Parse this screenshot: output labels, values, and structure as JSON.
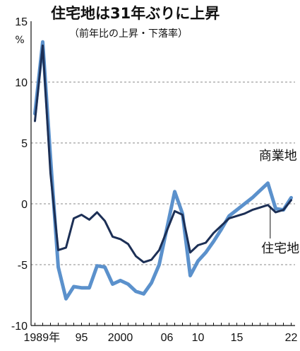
{
  "chart_data": {
    "type": "line",
    "title": "住宅地は31年ぶりに上昇",
    "subtitle": "（前年比の上昇・下落率）",
    "unit": "%",
    "x": [
      1989,
      1990,
      1991,
      1992,
      1993,
      1994,
      1995,
      1996,
      1997,
      1998,
      1999,
      2000,
      2001,
      2002,
      2003,
      2004,
      2005,
      2006,
      2007,
      2008,
      2009,
      2010,
      2011,
      2012,
      2013,
      2014,
      2015,
      2016,
      2017,
      2018,
      2019,
      2020,
      2021,
      2022
    ],
    "xlim": [
      1988.5,
      2022.5
    ],
    "ylim": [
      -10,
      15
    ],
    "yticks": [
      15,
      10,
      5,
      0,
      -5,
      -10
    ],
    "ytick_labels": [
      "15",
      "10",
      "5",
      "0",
      "-5",
      "-10"
    ],
    "xticks": [
      1989,
      1995,
      2000,
      2006,
      2010,
      2015,
      2022
    ],
    "xtick_labels": [
      "1989年",
      "95",
      "2000",
      "06",
      "10",
      "15",
      "22"
    ],
    "grid": true,
    "series": [
      {
        "name": "商業地",
        "color": "#5b91cc",
        "values": [
          7.4,
          13.3,
          3.8,
          -5.2,
          -7.8,
          -6.8,
          -6.9,
          -6.9,
          -5.1,
          -5.2,
          -6.6,
          -6.3,
          -6.6,
          -7.2,
          -7.4,
          -6.5,
          -5.0,
          -2.0,
          1.0,
          -0.8,
          -5.9,
          -4.7,
          -4.0,
          -3.1,
          -2.1,
          -1.0,
          -0.5,
          0.0,
          0.5,
          1.1,
          1.7,
          -0.4,
          -0.5,
          0.5
        ]
      },
      {
        "name": "住宅地",
        "color": "#1c2f55",
        "values": [
          6.8,
          13.0,
          2.5,
          -3.8,
          -3.6,
          -1.2,
          -0.9,
          -1.3,
          -0.7,
          -1.4,
          -2.7,
          -2.9,
          -3.3,
          -4.3,
          -4.8,
          -4.6,
          -3.8,
          -2.2,
          -0.6,
          -0.9,
          -4.0,
          -3.4,
          -3.2,
          -2.4,
          -1.8,
          -1.2,
          -1.0,
          -0.8,
          -0.5,
          -0.3,
          -0.1,
          -0.7,
          -0.5,
          0.3
        ]
      }
    ]
  }
}
